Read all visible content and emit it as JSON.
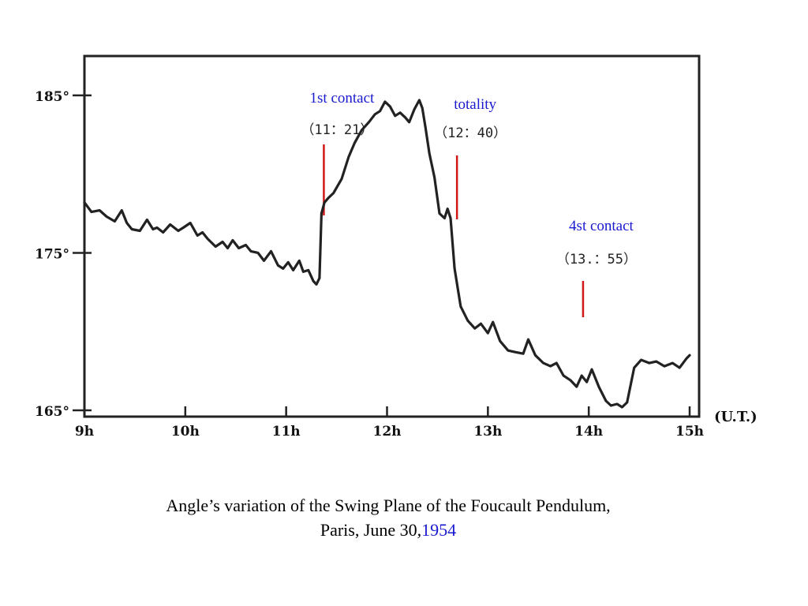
{
  "caption": {
    "line1": "Angle’s variation of the Swing Plane of the Foucault Pendulum,",
    "line2": "Paris, June 30,",
    "year": "1954"
  },
  "chart_data": {
    "type": "line",
    "xlabel": "(U.T.)",
    "ylabel": "",
    "x_tick_labels": [
      "9h",
      "10h",
      "11h",
      "12h",
      "13h",
      "14h",
      "15h"
    ],
    "x_ticks": [
      9,
      10,
      11,
      12,
      13,
      14,
      15
    ],
    "y_tick_labels": [
      "165°",
      "175°",
      "185°"
    ],
    "y_ticks": [
      165,
      175,
      185
    ],
    "xlim": [
      9,
      15
    ],
    "ylim": [
      165,
      187.5
    ],
    "grid": false,
    "legend": "none",
    "colors": {
      "line": "#222222",
      "marker": "#d01818",
      "annotation_text": "#1a1ad0"
    },
    "series": [
      {
        "x": [
          9.0,
          9.07,
          9.15,
          9.22,
          9.3,
          9.37,
          9.42,
          9.47,
          9.55,
          9.62,
          9.68,
          9.72,
          9.78,
          9.85,
          9.93,
          9.98,
          10.05,
          10.12,
          10.17,
          10.22,
          10.3,
          10.37,
          10.42,
          10.47,
          10.53,
          10.6,
          10.65,
          10.72,
          10.78,
          10.85,
          10.92,
          10.97,
          11.02,
          11.07,
          11.13,
          11.17,
          11.22,
          11.27,
          11.3,
          11.33,
          11.35,
          11.38,
          11.42,
          11.47,
          11.55,
          11.62,
          11.68,
          11.75,
          11.82,
          11.88,
          11.93,
          11.98,
          12.03,
          12.08,
          12.13,
          12.18,
          12.22,
          12.27,
          12.32,
          12.35,
          12.38,
          12.42,
          12.47,
          12.52,
          12.57,
          12.6,
          12.63,
          12.67,
          12.73,
          12.8,
          12.87,
          12.93,
          13.0,
          13.05,
          13.12,
          13.2,
          13.27,
          13.35,
          13.4,
          13.47,
          13.55,
          13.62,
          13.68,
          13.75,
          13.82,
          13.88,
          13.93,
          13.98,
          14.03,
          14.1,
          14.17,
          14.22,
          14.28,
          14.33,
          14.38,
          14.45,
          14.52,
          14.6,
          14.67,
          14.75,
          14.83,
          14.9,
          14.97,
          15.0
        ],
        "y": [
          178.2,
          177.6,
          177.7,
          177.3,
          177.0,
          177.7,
          176.9,
          176.5,
          176.4,
          177.1,
          176.5,
          176.6,
          176.3,
          176.8,
          176.4,
          176.6,
          176.9,
          176.1,
          176.3,
          175.9,
          175.4,
          175.7,
          175.3,
          175.8,
          175.3,
          175.5,
          175.1,
          175.0,
          174.5,
          175.1,
          174.2,
          174.0,
          174.4,
          173.9,
          174.5,
          173.8,
          173.9,
          173.2,
          173.0,
          173.4,
          177.5,
          178.2,
          178.5,
          178.8,
          179.7,
          181.1,
          182.0,
          182.8,
          183.3,
          183.8,
          184.0,
          184.6,
          184.3,
          183.7,
          183.9,
          183.6,
          183.3,
          184.1,
          184.7,
          184.2,
          183.0,
          181.3,
          179.8,
          177.5,
          177.2,
          177.8,
          177.2,
          174.0,
          171.6,
          170.7,
          170.2,
          170.5,
          169.9,
          170.6,
          169.4,
          168.8,
          168.7,
          168.6,
          169.5,
          168.5,
          168.0,
          167.8,
          168.0,
          167.2,
          166.9,
          166.5,
          167.2,
          166.8,
          167.6,
          166.5,
          165.6,
          165.3,
          165.4,
          165.2,
          165.5,
          167.7,
          168.2,
          168.0,
          168.1,
          167.8,
          168.0,
          167.7,
          168.3,
          168.5
        ]
      }
    ],
    "annotations": [
      {
        "title": "1st contact",
        "time": "（11：21）",
        "x": 11.35
      },
      {
        "title": "totality",
        "time": "（12：40）",
        "x": 12.67
      },
      {
        "title": "4st contact",
        "time": "（13.：55）",
        "x": 13.92
      }
    ]
  }
}
